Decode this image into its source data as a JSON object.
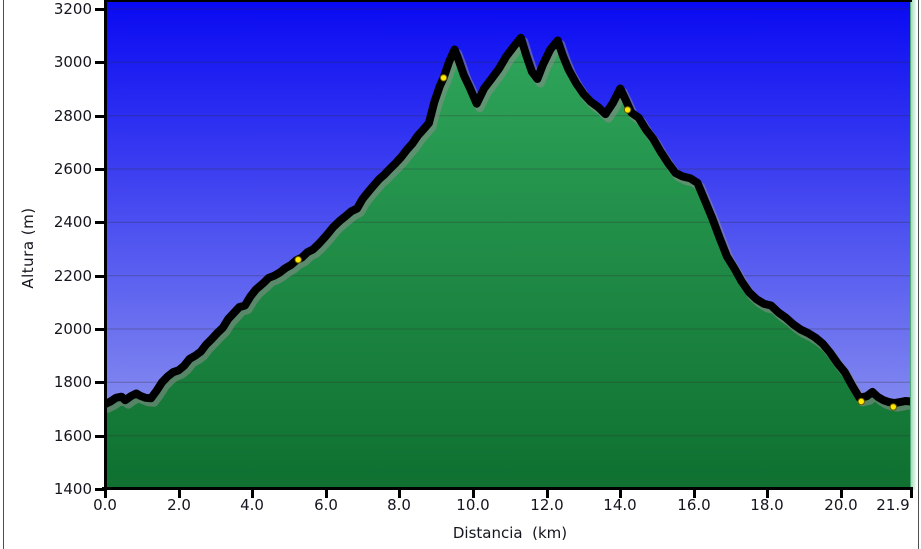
{
  "window": {
    "background": "#ffffff",
    "border_color": "#4f4f4f"
  },
  "axes": {
    "y_title": "Altura (m)",
    "x_title": "Distancia  (km)",
    "y_tick_labels": [
      "1400",
      "1600",
      "1800",
      "2000",
      "2200",
      "2400",
      "2600",
      "2800",
      "3000",
      "3200"
    ],
    "x_tick_labels": [
      "0.0",
      "2.0",
      "4.0",
      "6.0",
      "8.0",
      "10.0",
      "12.0",
      "14.0",
      "16.0",
      "18.0",
      "20.0",
      "21.9"
    ]
  },
  "chart_data": {
    "type": "area",
    "title": "",
    "xlabel": "Distancia (km)",
    "ylabel": "Altura (m)",
    "xlim": [
      0,
      21.9
    ],
    "ylim": [
      1400,
      3200
    ],
    "x_ticks": [
      0,
      2,
      4,
      6,
      8,
      10,
      12,
      14,
      16,
      18,
      20,
      21.9
    ],
    "y_ticks": [
      1400,
      1600,
      1800,
      2000,
      2200,
      2400,
      2600,
      2800,
      3000,
      3200
    ],
    "grid": true,
    "legend": "none",
    "series": [
      {
        "name": "elevation_profile_m",
        "points": [
          [
            0.0,
            1718
          ],
          [
            0.15,
            1728
          ],
          [
            0.3,
            1742
          ],
          [
            0.45,
            1746
          ],
          [
            0.55,
            1733
          ],
          [
            0.7,
            1748
          ],
          [
            0.85,
            1758
          ],
          [
            0.95,
            1750
          ],
          [
            1.1,
            1742
          ],
          [
            1.25,
            1740
          ],
          [
            1.4,
            1768
          ],
          [
            1.55,
            1800
          ],
          [
            1.7,
            1822
          ],
          [
            1.85,
            1838
          ],
          [
            2.0,
            1845
          ],
          [
            2.15,
            1862
          ],
          [
            2.3,
            1888
          ],
          [
            2.45,
            1900
          ],
          [
            2.6,
            1915
          ],
          [
            2.75,
            1942
          ],
          [
            2.9,
            1962
          ],
          [
            3.05,
            1985
          ],
          [
            3.2,
            2005
          ],
          [
            3.35,
            2038
          ],
          [
            3.5,
            2060
          ],
          [
            3.65,
            2082
          ],
          [
            3.8,
            2088
          ],
          [
            3.95,
            2122
          ],
          [
            4.1,
            2148
          ],
          [
            4.3,
            2172
          ],
          [
            4.45,
            2192
          ],
          [
            4.6,
            2200
          ],
          [
            4.75,
            2212
          ],
          [
            4.9,
            2228
          ],
          [
            5.05,
            2240
          ],
          [
            5.2,
            2258
          ],
          [
            5.35,
            2268
          ],
          [
            5.5,
            2288
          ],
          [
            5.65,
            2298
          ],
          [
            5.8,
            2318
          ],
          [
            6.0,
            2348
          ],
          [
            6.2,
            2382
          ],
          [
            6.4,
            2408
          ],
          [
            6.55,
            2425
          ],
          [
            6.7,
            2442
          ],
          [
            6.85,
            2452
          ],
          [
            7.0,
            2488
          ],
          [
            7.2,
            2522
          ],
          [
            7.45,
            2562
          ],
          [
            7.6,
            2580
          ],
          [
            7.75,
            2602
          ],
          [
            7.9,
            2622
          ],
          [
            8.05,
            2645
          ],
          [
            8.2,
            2672
          ],
          [
            8.35,
            2695
          ],
          [
            8.5,
            2725
          ],
          [
            8.65,
            2748
          ],
          [
            8.8,
            2772
          ],
          [
            8.95,
            2852
          ],
          [
            9.1,
            2912
          ],
          [
            9.2,
            2942
          ],
          [
            9.35,
            3002
          ],
          [
            9.5,
            3048
          ],
          [
            9.6,
            3012
          ],
          [
            9.75,
            2952
          ],
          [
            9.9,
            2908
          ],
          [
            10.1,
            2845
          ],
          [
            10.3,
            2902
          ],
          [
            10.5,
            2938
          ],
          [
            10.7,
            2975
          ],
          [
            10.9,
            3022
          ],
          [
            11.1,
            3058
          ],
          [
            11.3,
            3092
          ],
          [
            11.45,
            3025
          ],
          [
            11.6,
            2965
          ],
          [
            11.75,
            2938
          ],
          [
            11.9,
            2992
          ],
          [
            12.1,
            3048
          ],
          [
            12.3,
            3082
          ],
          [
            12.45,
            3022
          ],
          [
            12.6,
            2972
          ],
          [
            12.8,
            2922
          ],
          [
            13.0,
            2882
          ],
          [
            13.2,
            2852
          ],
          [
            13.4,
            2832
          ],
          [
            13.6,
            2806
          ],
          [
            13.8,
            2848
          ],
          [
            14.0,
            2902
          ],
          [
            14.15,
            2858
          ],
          [
            14.3,
            2812
          ],
          [
            14.5,
            2792
          ],
          [
            14.7,
            2748
          ],
          [
            14.9,
            2712
          ],
          [
            15.1,
            2665
          ],
          [
            15.3,
            2622
          ],
          [
            15.5,
            2585
          ],
          [
            15.7,
            2572
          ],
          [
            15.9,
            2565
          ],
          [
            16.1,
            2548
          ],
          [
            16.3,
            2482
          ],
          [
            16.5,
            2415
          ],
          [
            16.7,
            2342
          ],
          [
            16.9,
            2272
          ],
          [
            17.1,
            2228
          ],
          [
            17.3,
            2178
          ],
          [
            17.5,
            2138
          ],
          [
            17.7,
            2112
          ],
          [
            17.9,
            2095
          ],
          [
            18.1,
            2088
          ],
          [
            18.3,
            2062
          ],
          [
            18.5,
            2042
          ],
          [
            18.7,
            2018
          ],
          [
            18.9,
            1998
          ],
          [
            19.1,
            1985
          ],
          [
            19.3,
            1968
          ],
          [
            19.5,
            1945
          ],
          [
            19.7,
            1912
          ],
          [
            19.9,
            1872
          ],
          [
            20.1,
            1838
          ],
          [
            20.3,
            1788
          ],
          [
            20.5,
            1742
          ],
          [
            20.7,
            1748
          ],
          [
            20.85,
            1764
          ],
          [
            21.0,
            1745
          ],
          [
            21.15,
            1733
          ],
          [
            21.3,
            1726
          ],
          [
            21.45,
            1722
          ],
          [
            21.6,
            1726
          ],
          [
            21.75,
            1730
          ],
          [
            21.9,
            1728
          ]
        ]
      }
    ],
    "waypoints": [
      [
        5.25,
        2260
      ],
      [
        9.2,
        2942
      ],
      [
        14.2,
        2822
      ],
      [
        20.55,
        1728
      ],
      [
        21.42,
        1708
      ]
    ],
    "colors": {
      "sky_top": "#0909f2",
      "sky_bottom": "#9ba3ee",
      "ground_top": "#2fa55b",
      "ground_bottom": "#0f7030",
      "line": "#000000",
      "line_shadow": "#8c8c8c",
      "waypoint_fill": "#ffe900",
      "waypoint_outline": "#6b5b00",
      "grid_line": "#2a2a2a",
      "axis": "#000000",
      "tick_label": "#15151f"
    }
  }
}
